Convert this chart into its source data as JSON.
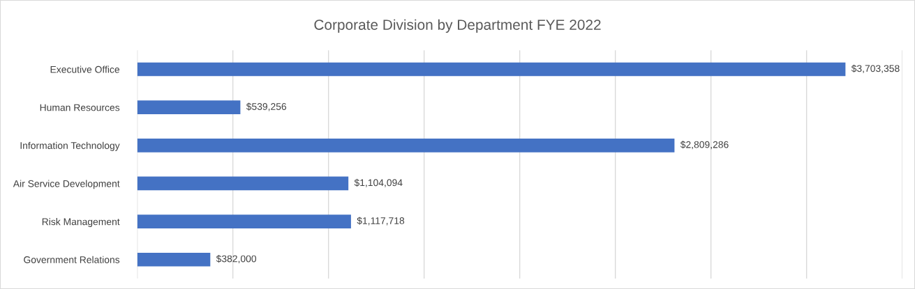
{
  "chart_data": {
    "type": "bar",
    "orientation": "horizontal",
    "title": "Corporate Division by Department FYE 2022",
    "categories": [
      "Executive Office",
      "Human Resources",
      "Information Technology",
      "Air Service Development",
      "Risk Management",
      "Government Relations"
    ],
    "values": [
      3703358,
      539256,
      2809286,
      1104094,
      1117718,
      382000
    ],
    "value_labels": [
      "$3,703,358",
      "$539,256",
      "$2,809,286",
      "$1,104,094",
      "$1,117,718",
      "$382,000"
    ],
    "color": "#4472c4",
    "xlim": [
      0,
      4000000
    ],
    "xticks": [
      {
        "value": 0,
        "label": null
      },
      {
        "value": 500000,
        "label": null
      },
      {
        "value": 1000000,
        "label": null
      },
      {
        "value": 1500000,
        "label": null
      },
      {
        "value": 2000000,
        "label": null
      },
      {
        "value": 2500000,
        "label": null
      },
      {
        "value": 3000000,
        "label": null
      },
      {
        "value": 3500000,
        "label": null
      },
      {
        "value": 4000000,
        "label": null
      }
    ],
    "tick_labels": "y",
    "grid": "x",
    "legend": false
  }
}
